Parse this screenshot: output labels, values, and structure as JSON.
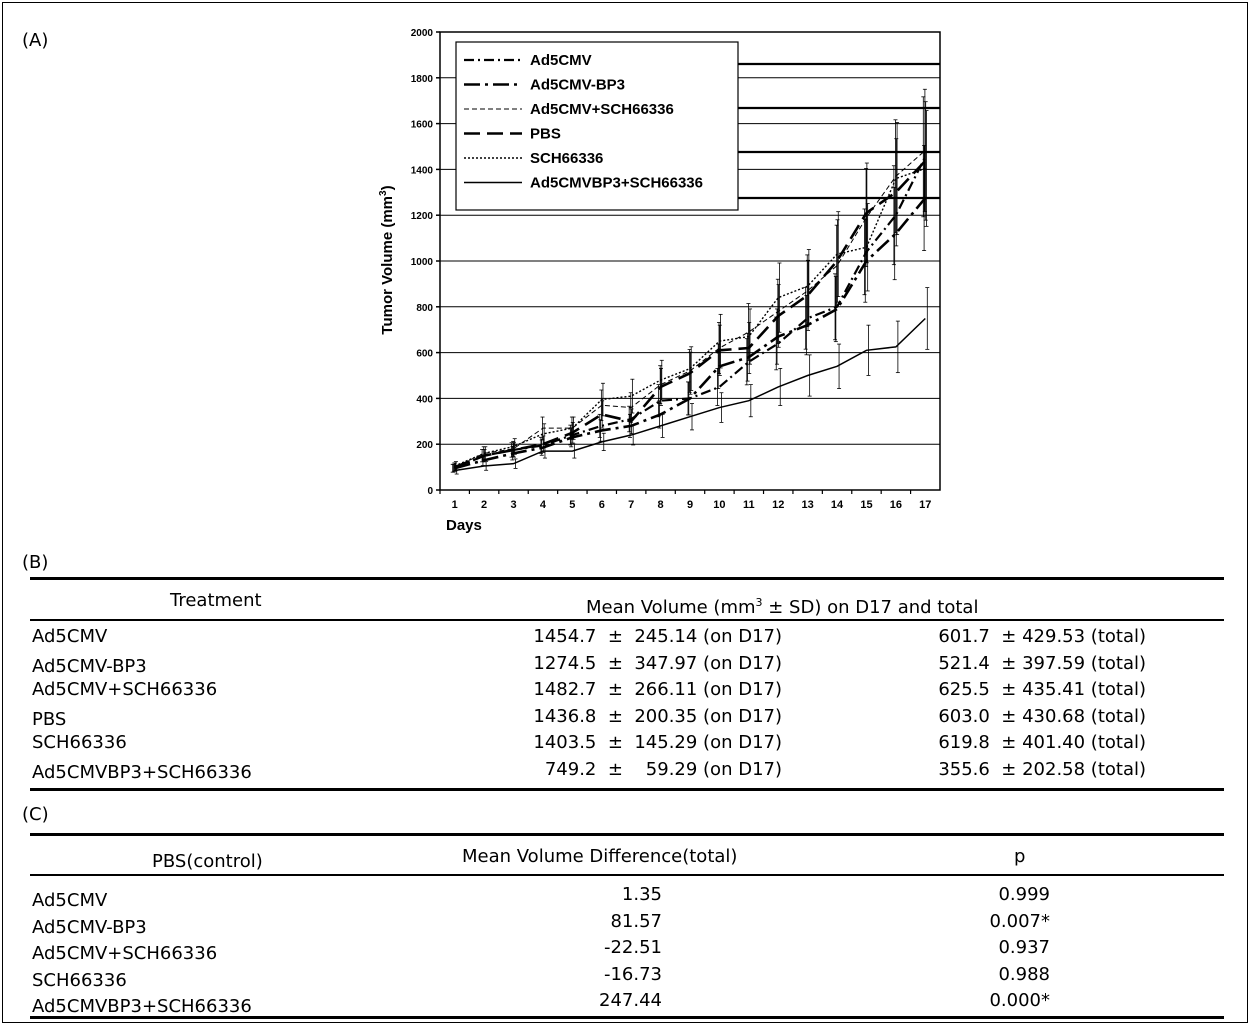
{
  "panels": {
    "a": "(A)",
    "b": "(B)",
    "c": "(C)"
  },
  "chart_data": {
    "type": "line",
    "xlabel": "Days",
    "ylabel": "Tumor Volume (mm",
    "ylabel_sup": "3",
    "ylabel_end": ")",
    "ylim": [
      0,
      2000
    ],
    "yticks": [
      0,
      200,
      400,
      600,
      800,
      1000,
      1200,
      1400,
      1600,
      1800,
      2000
    ],
    "x": [
      1,
      2,
      3,
      4,
      5,
      6,
      7,
      8,
      9,
      10,
      11,
      12,
      13,
      14,
      15,
      16,
      17
    ],
    "legend_position": "top-left",
    "series": [
      {
        "name": "Ad5CMV",
        "dash": "dashdot",
        "width": 2.2,
        "values": [
          95,
          150,
          175,
          195,
          240,
          280,
          310,
          390,
          400,
          450,
          560,
          640,
          750,
          800,
          1040,
          1200,
          1455
        ]
      },
      {
        "name": "Ad5CMV-BP3",
        "dash": "longdashdot",
        "width": 2.6,
        "values": [
          95,
          130,
          160,
          185,
          230,
          260,
          280,
          330,
          400,
          540,
          580,
          670,
          720,
          790,
          1000,
          1120,
          1275
        ]
      },
      {
        "name": "Ad5CMV+SCH66336",
        "dash": "thindash",
        "width": 1.0,
        "values": [
          100,
          160,
          180,
          270,
          270,
          370,
          360,
          460,
          520,
          620,
          690,
          780,
          870,
          980,
          1190,
          1370,
          1483
        ]
      },
      {
        "name": "PBS",
        "dash": "longdash",
        "width": 2.6,
        "values": [
          100,
          150,
          175,
          200,
          250,
          330,
          300,
          450,
          510,
          610,
          620,
          760,
          850,
          1000,
          1210,
          1300,
          1437
        ]
      },
      {
        "name": "SCH66336",
        "dash": "dotted",
        "width": 1.4,
        "values": [
          105,
          160,
          190,
          245,
          270,
          395,
          410,
          480,
          530,
          650,
          670,
          840,
          890,
          1030,
          1060,
          1360,
          1404
        ]
      },
      {
        "name": "Ad5CMVBP3+SCH66336",
        "dash": "solid",
        "width": 1.5,
        "values": [
          85,
          105,
          115,
          170,
          170,
          210,
          240,
          280,
          320,
          360,
          390,
          450,
          500,
          540,
          610,
          625,
          749
        ]
      }
    ]
  },
  "table_b": {
    "col1": "Treatment",
    "col2_pre": "Mean Volume (mm",
    "col2_sup": "3",
    "col2_post": " ± SD) on D17 and total",
    "rows": [
      {
        "treatment": "Ad5CMV",
        "d17": "1454.7  ±  245.14 (on D17)",
        "total": "601.7  ± 429.53 (total)"
      },
      {
        "treatment": "Ad5CMV-BP3",
        "d17": "1274.5  ±  347.97 (on D17)",
        "total": "521.4  ± 397.59 (total)"
      },
      {
        "treatment": "Ad5CMV+SCH66336",
        "d17": "1482.7  ±  266.11 (on D17)",
        "total": "625.5  ± 435.41 (total)"
      },
      {
        "treatment": "PBS",
        "d17": "1436.8  ±  200.35 (on D17)",
        "total": "603.0  ± 430.68 (total)"
      },
      {
        "treatment": "SCH66336",
        "d17": "1403.5  ±  145.29 (on D17)",
        "total": "619.8  ± 401.40 (total)"
      },
      {
        "treatment": "Ad5CMVBP3+SCH66336",
        "d17": "749.2  ±    59.29 (on D17)",
        "total": "355.6  ± 202.58 (total)"
      }
    ]
  },
  "table_c": {
    "col1": "PBS(control)",
    "col2": "Mean Volume Difference(total)",
    "col3": "p",
    "rows": [
      {
        "treatment": "Ad5CMV",
        "diff": "1.35",
        "p": "0.999"
      },
      {
        "treatment": "Ad5CMV-BP3",
        "diff": "81.57",
        "p": "0.007*"
      },
      {
        "treatment": "Ad5CMV+SCH66336",
        "diff": "-22.51",
        "p": "0.937"
      },
      {
        "treatment": "SCH66336",
        "diff": "-16.73",
        "p": "0.988"
      },
      {
        "treatment": "Ad5CMVBP3+SCH66336",
        "diff": "247.44",
        "p": "0.000*"
      }
    ]
  }
}
